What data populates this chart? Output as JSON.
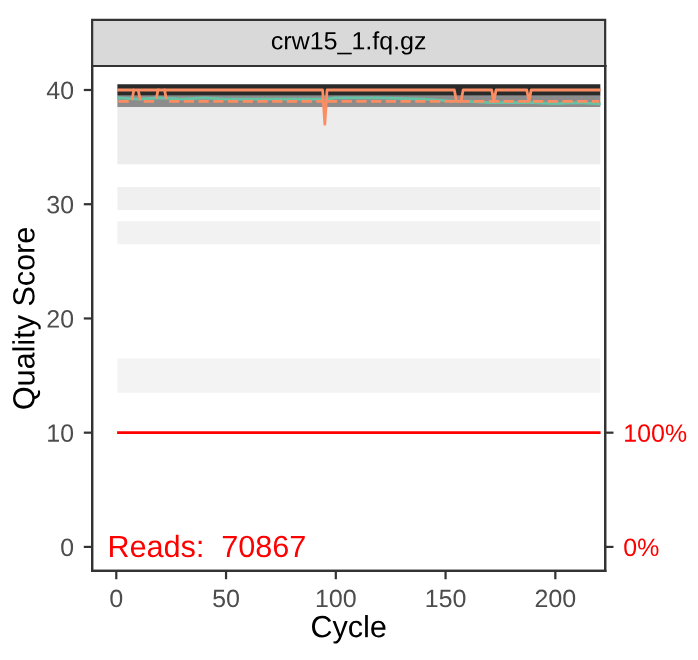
{
  "chart_data": {
    "type": "line",
    "title": "crw15_1.fq.gz",
    "xlabel": "Cycle",
    "ylabel": "Quality Score",
    "xlim": [
      -11,
      222.7
    ],
    "xticks": [
      0,
      50,
      100,
      150,
      200
    ],
    "ylim": [
      -2.1,
      42.1
    ],
    "yticks": [
      0,
      10,
      20,
      30,
      40
    ],
    "y2lim": [
      -21,
      421
    ],
    "y2ticks": [
      {
        "value": 0,
        "label": "0%"
      },
      {
        "value": 100,
        "label": "100%"
      }
    ],
    "grid": false,
    "legend": false,
    "bands": [
      {
        "axis": "y",
        "from": 39.5,
        "to": 40.5,
        "color": "#2a2a2a"
      },
      {
        "axis": "y",
        "from": 38.5,
        "to": 39.5,
        "color": "#8c8c8c"
      },
      {
        "axis": "y",
        "from": 33.5,
        "to": 38.5,
        "color": "#ececec"
      },
      {
        "axis": "y",
        "from": 29.5,
        "to": 31.5,
        "color": "#f0f0f0"
      },
      {
        "axis": "y",
        "from": 26.5,
        "to": 28.5,
        "color": "#f2f2f2"
      },
      {
        "axis": "y",
        "from": 13.5,
        "to": 16.5,
        "color": "#f3f3f3"
      }
    ],
    "series": [
      {
        "color": "#66c2a5",
        "line_style": "solid",
        "x": [
          1,
          10,
          20,
          30,
          40,
          50,
          60,
          70,
          80,
          90,
          94,
          95,
          96,
          100,
          120,
          140,
          155,
          160,
          170,
          180,
          190,
          200,
          210,
          220
        ],
        "values": [
          39.3,
          39.2,
          39.3,
          39.2,
          39.3,
          39.2,
          39.2,
          39.2,
          39.2,
          39.2,
          39.2,
          38.5,
          39.2,
          39.3,
          39.3,
          39.2,
          39.0,
          39.0,
          38.9,
          38.9,
          38.9,
          38.8,
          38.9,
          38.8
        ]
      },
      {
        "color": "#fc8d62",
        "line_style": "dashed",
        "x": [
          1,
          7,
          8,
          10,
          11,
          18,
          19,
          22,
          23,
          94,
          95,
          96,
          220
        ],
        "values": [
          39,
          39,
          40,
          40,
          39,
          39,
          40,
          40,
          39,
          39,
          38,
          39,
          39
        ]
      },
      {
        "color": "#fc8d62",
        "line_style": "solid",
        "x": [
          1,
          94,
          95,
          96,
          154,
          155,
          157,
          158,
          171,
          172,
          173,
          187,
          188,
          189,
          220
        ],
        "values": [
          40,
          40,
          37,
          40,
          40,
          39,
          39,
          40,
          40,
          39,
          40,
          40,
          39,
          40,
          40
        ]
      },
      {
        "color": "#ff0000",
        "line_style": "solid",
        "axis": "y2",
        "x": [
          1,
          220
        ],
        "values": [
          100,
          100
        ]
      }
    ],
    "annotations": [
      "Reads:  70867"
    ]
  }
}
